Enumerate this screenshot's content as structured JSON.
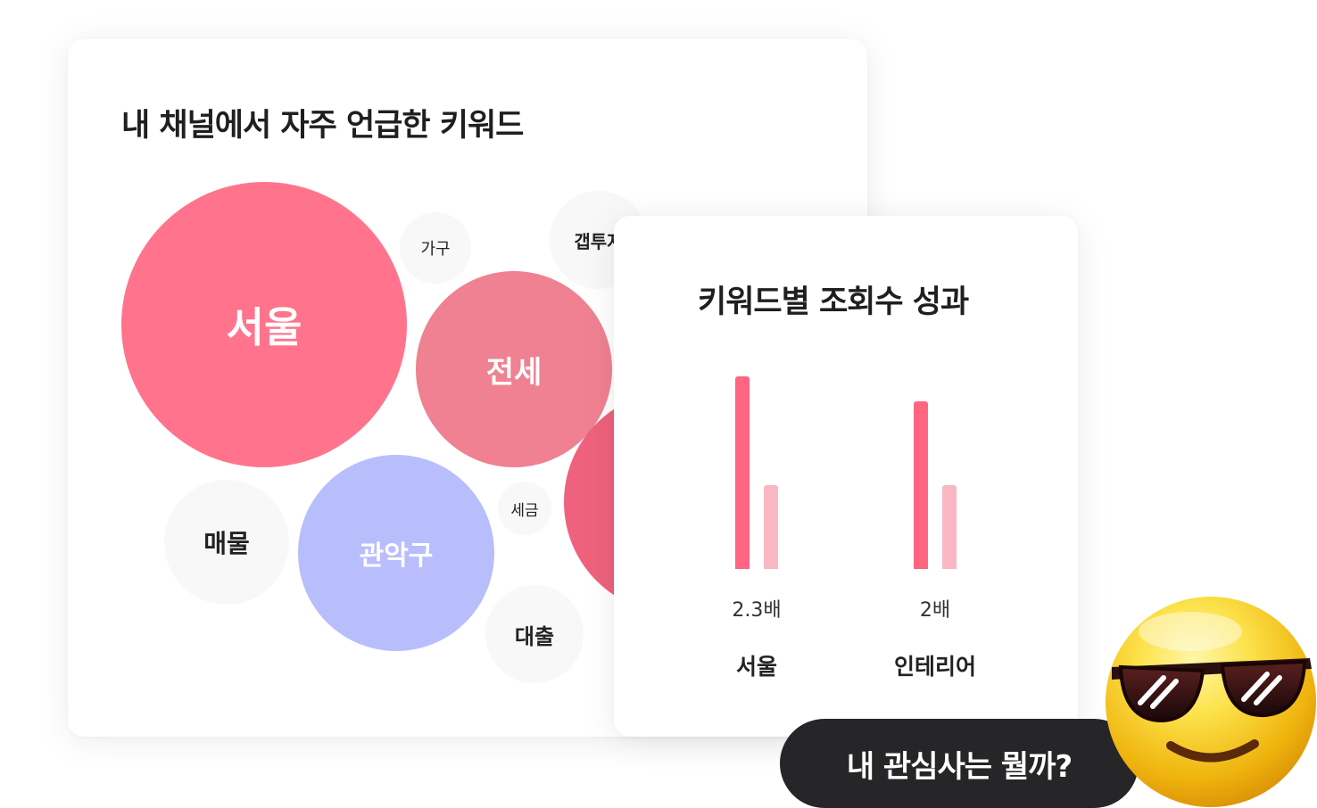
{
  "keywords_card": {
    "title": "내 채널에서 자주 언급한 키워드",
    "bubbles": [
      {
        "label": "서울",
        "rank": 1,
        "color": "#FF748C",
        "text_color": "#ffffff"
      },
      {
        "label": "전세",
        "rank": 2,
        "color": "#EF8192",
        "text_color": "#ffffff"
      },
      {
        "label": "관악구",
        "rank": 3,
        "color": "#B8BEFC",
        "text_color": "#ffffff"
      },
      {
        "label": "",
        "rank": 2,
        "color": "#EE627D",
        "text_color": "#ffffff"
      },
      {
        "label": "매물",
        "rank": 4,
        "color": "#F8F8F8",
        "text_color": "#222222"
      },
      {
        "label": "갭투자",
        "rank": 5,
        "color": "#F8F8F8",
        "text_color": "#222222"
      },
      {
        "label": "대출",
        "rank": 5,
        "color": "#F8F8F8",
        "text_color": "#222222"
      },
      {
        "label": "가구",
        "rank": 6,
        "color": "#F8F8F8",
        "text_color": "#222222"
      },
      {
        "label": "세금",
        "rank": 7,
        "color": "#F8F8F8",
        "text_color": "#222222"
      }
    ]
  },
  "performance_card": {
    "title": "키워드별 조회수 성과",
    "chart_data": {
      "type": "bar",
      "title": "키워드별 조회수 성과",
      "categories": [
        "서울",
        "인테리어"
      ],
      "series": [
        {
          "values": [
            2.3,
            2
          ],
          "color": "#FF6580"
        },
        {
          "values": [
            1,
            1
          ],
          "color": "#F8B7C3"
        }
      ],
      "value_labels": [
        "2.3배",
        "2배"
      ],
      "xlabel": "",
      "ylabel": "",
      "ylim": [
        0,
        2.3
      ],
      "grid": false
    }
  },
  "cta": {
    "label": "내 관심사는 뭘까?"
  },
  "icons": {
    "mascot": "sunglasses-smiley-icon"
  }
}
